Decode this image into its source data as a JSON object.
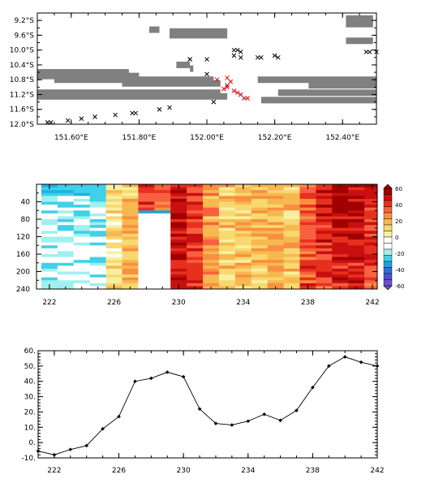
{
  "chart_data": [
    {
      "type": "scatter",
      "x_tick_labels": [
        "151.60°E",
        "151.80°E",
        "152.00°E",
        "152.20°E",
        "152.40°E"
      ],
      "x_ticks": [
        151.6,
        151.8,
        152.0,
        152.2,
        152.4
      ],
      "y_tick_labels": [
        "9.2°S",
        "9.6°S",
        "10.0°S",
        "10.4°S",
        "10.8°S",
        "11.2°S",
        "11.6°S",
        "12.0°S"
      ],
      "y_ticks": [
        -9.2,
        -9.6,
        -10.0,
        -10.4,
        -10.8,
        -11.2,
        -11.6,
        -12.0
      ],
      "xlim": [
        151.5,
        152.5
      ],
      "ylim": [
        -12.0,
        -9.0
      ],
      "land_color": "#808080",
      "land_bands": [
        {
          "x": [
            151.83,
            151.86
          ],
          "y": -9.45
        },
        {
          "x": [
            151.89,
            152.06
          ],
          "y": -9.5
        },
        {
          "x": [
            151.89,
            152.06
          ],
          "y": -9.6
        },
        {
          "x": [
            152.41,
            152.49
          ],
          "y": -9.15
        },
        {
          "x": [
            152.41,
            152.49
          ],
          "y": -9.3
        },
        {
          "x": [
            152.41,
            152.49
          ],
          "y": -9.75
        },
        {
          "x": [
            151.91,
            151.95
          ],
          "y": -10.4
        },
        {
          "x": [
            151.95,
            151.96
          ],
          "y": -10.5
        },
        {
          "x": [
            151.5,
            151.77
          ],
          "y": -10.6
        },
        {
          "x": [
            151.5,
            151.8
          ],
          "y": -10.7
        },
        {
          "x": [
            151.55,
            152.02
          ],
          "y": -10.8
        },
        {
          "x": [
            152.15,
            152.5
          ],
          "y": -10.8
        },
        {
          "x": [
            151.75,
            152.04
          ],
          "y": -10.9
        },
        {
          "x": [
            152.3,
            152.5
          ],
          "y": -10.95
        },
        {
          "x": [
            151.5,
            152.04
          ],
          "y": -11.15
        },
        {
          "x": [
            152.21,
            152.5
          ],
          "y": -11.15
        },
        {
          "x": [
            151.5,
            152.06
          ],
          "y": -11.25
        },
        {
          "x": [
            152.16,
            152.5
          ],
          "y": -11.35
        }
      ],
      "black_markers": [
        {
          "x": 151.53,
          "y": -11.95
        },
        {
          "x": 151.54,
          "y": -11.95
        },
        {
          "x": 151.59,
          "y": -11.9
        },
        {
          "x": 151.63,
          "y": -11.85
        },
        {
          "x": 151.67,
          "y": -11.8
        },
        {
          "x": 151.73,
          "y": -11.75
        },
        {
          "x": 151.78,
          "y": -11.7
        },
        {
          "x": 151.79,
          "y": -11.7
        },
        {
          "x": 151.86,
          "y": -11.6
        },
        {
          "x": 151.89,
          "y": -11.55
        },
        {
          "x": 151.95,
          "y": -10.25
        },
        {
          "x": 151.95,
          "y": -10.25
        },
        {
          "x": 152.0,
          "y": -10.25
        },
        {
          "x": 152.0,
          "y": -10.65
        },
        {
          "x": 152.02,
          "y": -11.4
        },
        {
          "x": 152.08,
          "y": -10.0
        },
        {
          "x": 152.08,
          "y": -10.15
        },
        {
          "x": 152.09,
          "y": -10.0
        },
        {
          "x": 152.1,
          "y": -10.05
        },
        {
          "x": 152.1,
          "y": -10.2
        },
        {
          "x": 152.15,
          "y": -10.2
        },
        {
          "x": 152.16,
          "y": -10.2
        },
        {
          "x": 152.2,
          "y": -10.15
        },
        {
          "x": 152.21,
          "y": -10.2
        },
        {
          "x": 152.47,
          "y": -10.05
        },
        {
          "x": 152.48,
          "y": -10.05
        },
        {
          "x": 152.5,
          "y": -10.05
        }
      ],
      "red_markers": [
        {
          "x": 152.03,
          "y": -10.8
        },
        {
          "x": 152.05,
          "y": -11.05
        },
        {
          "x": 152.06,
          "y": -11.0
        },
        {
          "x": 152.06,
          "y": -10.95
        },
        {
          "x": 152.06,
          "y": -10.75
        },
        {
          "x": 152.07,
          "y": -10.85
        },
        {
          "x": 152.08,
          "y": -11.1
        },
        {
          "x": 152.09,
          "y": -11.15
        },
        {
          "x": 152.1,
          "y": -11.2
        },
        {
          "x": 152.11,
          "y": -11.3
        },
        {
          "x": 152.12,
          "y": -11.3
        }
      ]
    },
    {
      "type": "heatmap",
      "x_tick_labels": [
        "222",
        "226",
        "230",
        "234",
        "238",
        "242"
      ],
      "x_ticks": [
        222,
        226,
        230,
        234,
        238,
        242
      ],
      "xlim": [
        221.2,
        242.3
      ],
      "y_tick_labels": [
        "40",
        "80",
        "120",
        "160",
        "200",
        "240"
      ],
      "y_ticks": [
        40,
        80,
        120,
        160,
        200,
        240
      ],
      "ylim": [
        240,
        0
      ],
      "colorbar_labels": [
        "60",
        "40",
        "20",
        "0",
        "-20",
        "-40",
        "-60"
      ],
      "colorbar_values": [
        60,
        40,
        20,
        0,
        -20,
        -40,
        -60
      ],
      "colorbar_colors": [
        "#a00000",
        "#c81010",
        "#e83020",
        "#f86040",
        "#f89040",
        "#f8b850",
        "#f8d870",
        "#f8f0a0",
        "#ffffff",
        "#ffffff",
        "#a0f0f0",
        "#40d0e8",
        "#20a0e0",
        "#3070d8",
        "#5050d0",
        "#7050d0"
      ],
      "columns": [
        {
          "x": 222,
          "value_surface": -30,
          "value_deep": -10,
          "pattern": "cyan-white"
        },
        {
          "x": 223,
          "value_surface": -30,
          "value_deep": -10,
          "pattern": "cyan-white"
        },
        {
          "x": 224,
          "value_surface": -25,
          "value_deep": -8,
          "pattern": "cyan-white"
        },
        {
          "x": 225,
          "value_surface": -20,
          "value_deep": 0,
          "pattern": "cyan-white"
        },
        {
          "x": 226,
          "value_surface": 10,
          "value_deep": 15,
          "pattern": "yellow"
        },
        {
          "x": 227,
          "value_surface": 20,
          "value_deep": 25,
          "pattern": "orange"
        },
        {
          "x": 228,
          "value_surface": 50,
          "value_deep": 10,
          "pattern": "red-top"
        },
        {
          "x": 229,
          "value_surface": 50,
          "value_deep": 0,
          "pattern": "red-top"
        },
        {
          "x": 230,
          "value_surface": 55,
          "value_deep": 55,
          "pattern": "red"
        },
        {
          "x": 231,
          "value_surface": 50,
          "value_deep": 45,
          "pattern": "red"
        },
        {
          "x": 232,
          "value_surface": 30,
          "value_deep": 30,
          "pattern": "orange"
        },
        {
          "x": 233,
          "value_surface": 20,
          "value_deep": 20,
          "pattern": "mixed"
        },
        {
          "x": 234,
          "value_surface": 20,
          "value_deep": 20,
          "pattern": "mixed"
        },
        {
          "x": 235,
          "value_surface": 25,
          "value_deep": 20,
          "pattern": "mixed"
        },
        {
          "x": 236,
          "value_surface": 25,
          "value_deep": 25,
          "pattern": "mixed"
        },
        {
          "x": 237,
          "value_surface": 20,
          "value_deep": 20,
          "pattern": "mixed"
        },
        {
          "x": 238,
          "value_surface": 40,
          "value_deep": 45,
          "pattern": "red"
        },
        {
          "x": 239,
          "value_surface": 55,
          "value_deep": 45,
          "pattern": "red"
        },
        {
          "x": 240,
          "value_surface": 60,
          "value_deep": 50,
          "pattern": "red"
        },
        {
          "x": 241,
          "value_surface": 60,
          "value_deep": 50,
          "pattern": "red"
        },
        {
          "x": 242,
          "value_surface": 55,
          "value_deep": 45,
          "pattern": "red"
        }
      ]
    },
    {
      "type": "line",
      "x_tick_labels": [
        "222",
        "226",
        "230",
        "234",
        "238",
        "242"
      ],
      "x_ticks": [
        222,
        226,
        230,
        234,
        238,
        242
      ],
      "xlim": [
        221,
        242
      ],
      "y_tick_labels": [
        "60.",
        "50.",
        "40.",
        "30.",
        "20.",
        "10.",
        "0.",
        "-10."
      ],
      "y_ticks": [
        60,
        50,
        40,
        30,
        20,
        10,
        0,
        -10
      ],
      "ylim": [
        -10,
        60
      ],
      "x": [
        221,
        222,
        223,
        224,
        225,
        226,
        227,
        228,
        229,
        230,
        231,
        232,
        233,
        234,
        235,
        236,
        237,
        238,
        239,
        240,
        241,
        242
      ],
      "y": [
        -5.5,
        -8.0,
        -4.5,
        -2.0,
        9.0,
        17.0,
        40.0,
        42.0,
        46.0,
        43.0,
        22.0,
        12.5,
        11.5,
        14.0,
        18.5,
        14.5,
        21.0,
        36.0,
        50.0,
        56.0,
        52.5,
        50.0
      ]
    }
  ]
}
